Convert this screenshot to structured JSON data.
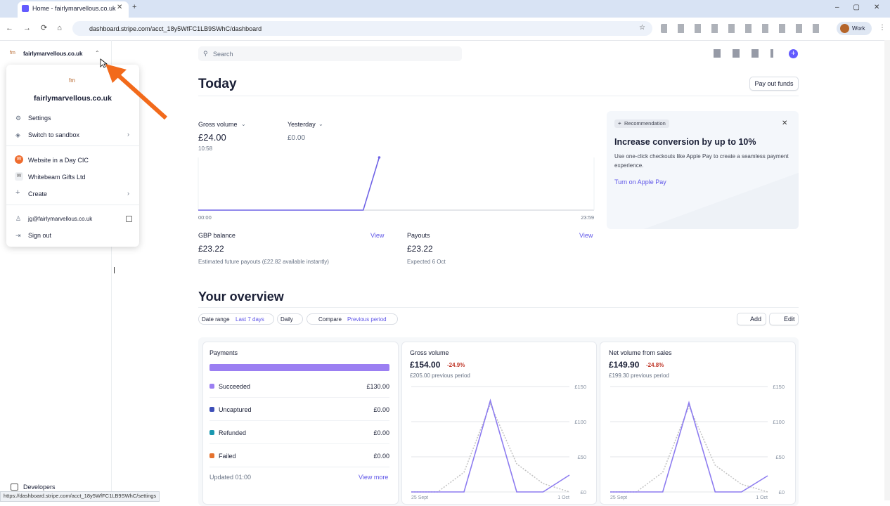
{
  "browser": {
    "tab_title": "Home - fairlymarvellous.co.uk",
    "url": "dashboard.stripe.com/acct_18y5WfFC1LB9SWhC/dashboard",
    "profile": "Work",
    "status_url": "https://dashboard.stripe.com/acct_18y5WfFC1LB9SWhC/settings"
  },
  "sidebar": {
    "account": "fairlymarvellous.co.uk",
    "developers": "Developers"
  },
  "account_menu": {
    "logo": "fm",
    "name": "fairlymarvellous.co.uk",
    "items": [
      "Settings",
      "Switch to sandbox"
    ],
    "accounts": [
      {
        "badge": "W",
        "name": "Website in a Day CIC"
      },
      {
        "badge": "W",
        "name": "Whitebeam Gifts Ltd"
      }
    ],
    "create": "Create",
    "email": "jg@fairlymarvellous.co.uk",
    "sign_out": "Sign out"
  },
  "search": "Search",
  "today": {
    "title": "Today",
    "pay_out": "Pay out funds",
    "gross_label": "Gross volume",
    "gross_value": "£24.00",
    "gross_time": "10:58",
    "yesterday_label": "Yesterday",
    "yesterday_value": "£0.00",
    "chart": {
      "type": "line",
      "x": [
        0,
        600,
        658
      ],
      "xlim": [
        0,
        1439
      ],
      "xticks": [
        {
          "value": 0,
          "label": "00:00"
        },
        {
          "value": 1439,
          "label": "23:59"
        }
      ],
      "ylim": [
        0,
        24
      ],
      "series": [
        {
          "color": "#6f63e6",
          "values": [
            0,
            0,
            24
          ]
        }
      ]
    },
    "balance": {
      "label": "GBP balance",
      "link": "View",
      "value": "£23.22",
      "note": "Estimated future payouts (£22.82 available instantly)"
    },
    "payouts": {
      "label": "Payouts",
      "link": "View",
      "value": "£23.22",
      "note": "Expected 6 Oct"
    }
  },
  "recommendation": {
    "badge": "Recommendation",
    "title": "Increase conversion by up to 10%",
    "body": "Use one-click checkouts like Apple Pay to create a seamless payment experience.",
    "link": "Turn on Apple Pay"
  },
  "overview": {
    "title": "Your overview",
    "filters": {
      "date_range": "Date range",
      "period": "Last 7 days",
      "interval": "Daily",
      "compare": "Compare",
      "compare_period": "Previous period"
    },
    "add": "Add",
    "edit": "Edit",
    "payments": {
      "title": "Payments",
      "rows": [
        {
          "label": "Succeeded",
          "value": "£130.00",
          "color": "#9b7ff2"
        },
        {
          "label": "Uncaptured",
          "value": "£0.00",
          "color": "#3d4eb8"
        },
        {
          "label": "Refunded",
          "value": "£0.00",
          "color": "#1a98b0"
        },
        {
          "label": "Failed",
          "value": "£0.00",
          "color": "#e5722e"
        }
      ],
      "updated": "Updated 01:00",
      "view_more": "View more"
    },
    "gross": {
      "title": "Gross volume",
      "value": "£154.00",
      "change": "-24.9%",
      "previous": "£205.00 previous period",
      "chart": {
        "type": "line",
        "categories": [
          "25 Sept",
          null,
          null,
          null,
          null,
          null,
          "1 Oct"
        ],
        "ylim": [
          0,
          150
        ],
        "yticks": [
          {
            "value": 0,
            "label": "£0"
          },
          {
            "value": 50,
            "label": "£50"
          },
          {
            "value": 100,
            "label": "£100"
          },
          {
            "value": 150,
            "label": "£150"
          }
        ],
        "grid": true,
        "series": [
          {
            "color": "#8d7cf0",
            "dashed": false,
            "values": [
              0,
              0,
              0,
              130,
              0,
              0,
              24
            ]
          },
          {
            "color": "#c2c2c2",
            "dashed": true,
            "values": [
              0,
              0,
              28,
              125,
              40,
              12,
              0
            ]
          }
        ]
      }
    },
    "net": {
      "title": "Net volume from sales",
      "value": "£149.90",
      "change": "-24.8%",
      "previous": "£199.30 previous period",
      "chart": {
        "type": "line",
        "categories": [
          "25 Sept",
          null,
          null,
          null,
          null,
          null,
          "1 Oct"
        ],
        "ylim": [
          0,
          150
        ],
        "yticks": [
          {
            "value": 0,
            "label": "£0"
          },
          {
            "value": 50,
            "label": "£50"
          },
          {
            "value": 100,
            "label": "£100"
          },
          {
            "value": 150,
            "label": "£150"
          }
        ],
        "grid": true,
        "series": [
          {
            "color": "#8d7cf0",
            "dashed": false,
            "values": [
              0,
              0,
              0,
              127,
              0,
              0,
              23
            ]
          },
          {
            "color": "#c2c2c2",
            "dashed": true,
            "values": [
              0,
              0,
              28,
              122,
              38,
              11,
              0
            ]
          }
        ]
      }
    }
  }
}
